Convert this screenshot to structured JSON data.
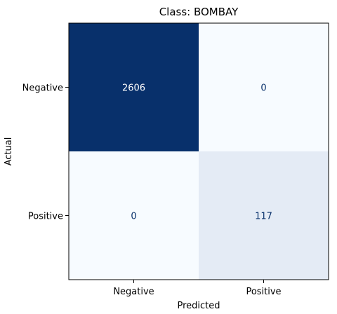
{
  "chart_data": {
    "type": "heatmap",
    "title": "Class: BOMBAY",
    "xlabel": "Predicted",
    "ylabel": "Actual",
    "x_categories": [
      "Negative",
      "Positive"
    ],
    "y_categories": [
      "Negative",
      "Positive"
    ],
    "values": [
      [
        2606,
        0
      ],
      [
        0,
        117
      ]
    ],
    "colormap": "Blues",
    "colors": {
      "max": "#08306b",
      "low": "#eef4fb",
      "min": "#f7fbff",
      "light_text": "#ffffff",
      "dark_text": "#08306b"
    },
    "grid": false
  }
}
